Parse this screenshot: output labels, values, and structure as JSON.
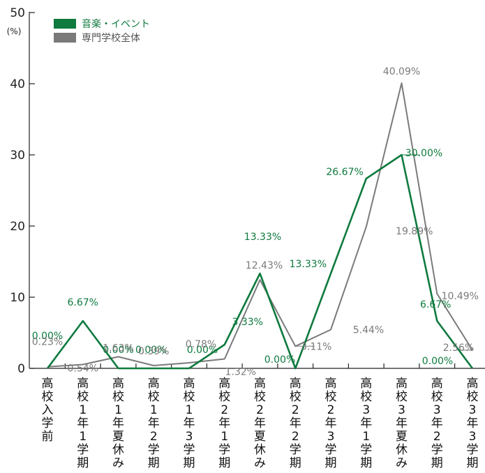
{
  "chart_data": {
    "type": "line",
    "y_unit": "(%)",
    "ylim": [
      0,
      50
    ],
    "y_ticks": [
      "0",
      "10",
      "20",
      "30",
      "40",
      "50"
    ],
    "grid": false,
    "legend_position": "top-left",
    "categories": [
      "高校入学前",
      "高校1年1学期",
      "高校1年夏休み",
      "高校1年2学期",
      "高校1年3学期",
      "高校2年1学期",
      "高校2年夏休み",
      "高校2年2学期",
      "高校2年3学期",
      "高校3年1学期",
      "高校3年夏休み",
      "高校3年2学期",
      "高校3年3学期"
    ],
    "series": [
      {
        "name": "音楽・イベント",
        "color": "#0e7a3e",
        "values": [
          0.0,
          6.67,
          0.0,
          0.0,
          0.0,
          3.33,
          13.33,
          0.0,
          13.33,
          26.67,
          30.0,
          6.67,
          0.0
        ],
        "labels": [
          "0.00%",
          "6.67%",
          "0.00%",
          "0.00%",
          "0.00%",
          "3.33%",
          "13.33%",
          "0.00%",
          "13.33%",
          "26.67%",
          "30.00%",
          "6.67%",
          "0.00%"
        ]
      },
      {
        "name": "専門学校全体",
        "color": "#7a7a7a",
        "values": [
          0.23,
          0.54,
          1.63,
          0.39,
          0.78,
          1.32,
          12.43,
          3.11,
          5.44,
          19.89,
          40.09,
          10.49,
          2.56
        ],
        "labels": [
          "0.23%",
          "0.54%",
          "1.63%",
          "0.39%",
          "0.78%",
          "1.32%",
          "12.43%",
          "3.11%",
          "5.44%",
          "19.89%",
          "40.09%",
          "10.49%",
          "2.56%"
        ]
      }
    ]
  }
}
